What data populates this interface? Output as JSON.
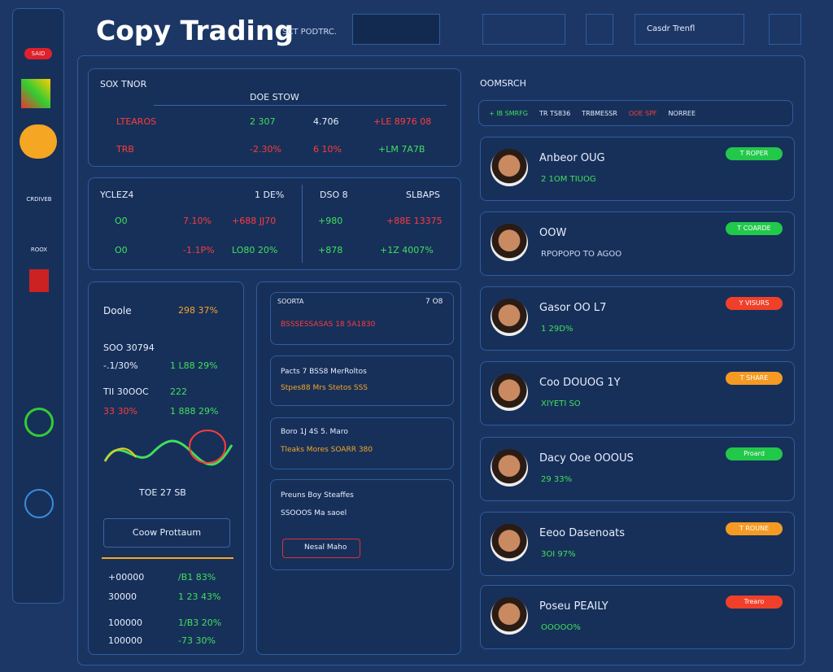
{
  "header": {
    "title": "Copy Trading",
    "subtitle": "SCT PODTRC.",
    "search": "Casdr Trenfl"
  },
  "sidebar": {
    "items": [
      "SAID",
      "CRDIVEB",
      "ROOX"
    ]
  },
  "market_table": {
    "title": "SOX TNOR",
    "column": "DOE STOW",
    "rows": [
      [
        "LTEAROS",
        "2 307",
        "4.706",
        "+LE 8976 08"
      ],
      [
        "TRB",
        "-2.30%",
        "6 10%",
        "+LM 7A7B"
      ]
    ]
  },
  "pair_table": {
    "left": {
      "title": "YCLEZ4",
      "column": "1 DE%",
      "rows": [
        [
          "O0",
          "7.10%",
          "+688 JJ70"
        ],
        [
          "O0",
          "-1.1P%",
          "LO80 20%"
        ]
      ]
    },
    "right": {
      "title": "DSO 8",
      "column": "SLBAPS",
      "rows": [
        [
          "+980",
          "+88E 13375"
        ],
        [
          "+878",
          "+1Z 4007%"
        ]
      ]
    }
  },
  "portfolio": {
    "title": "Doole",
    "total": "298 37%",
    "subtitle": "SOO 30794",
    "rows": [
      [
        "-.1/30%",
        "1 L88 29%"
      ],
      [
        "TII 30OOC",
        "222"
      ],
      [
        "33 30%",
        "1 888 29%"
      ]
    ],
    "chart_legend": "TOE 27 SB",
    "button": "Coow Prottaum",
    "bottom_rows": [
      [
        "+00000",
        "/B1 83%"
      ],
      [
        "30000",
        "1 23 43%"
      ],
      [
        "100000",
        "1/B3 20%"
      ],
      [
        "100000",
        "-73 30%"
      ]
    ]
  },
  "feed": {
    "cards": [
      {
        "title": "SOORTA",
        "tag": "7 O8",
        "text": "BSSSESSASAS  18 5A1830"
      },
      {
        "title": "Pacts 7 BSS8 MerRoltos",
        "text": "Stpes88 Mrs Stetos SSS"
      },
      {
        "title": "Boro 1J 4S 5. Maro",
        "text": "Tleaks Mores SOARR 380"
      },
      {
        "title": "Preuns Boy Steaffes",
        "text": "SSOOOS Ma saoel",
        "button": "Nesal Maho"
      }
    ]
  },
  "traders_panel": {
    "title": "OOMSRCH",
    "filters": [
      "+ IB SMRFG",
      "TR TS836",
      "TRBMESSR",
      "OOE SPF",
      "NORREE"
    ]
  },
  "traders": [
    {
      "name": "Anbeor OUG",
      "stat": "2 1OM TIUOG",
      "badge": "T ROPER"
    },
    {
      "name": "OOW",
      "stat": "RPOPOPO TO AGOO",
      "badge": "T COARDE"
    },
    {
      "name": "Gasor OO L7",
      "stat": "1 29D%",
      "badge": "Y VISURS"
    },
    {
      "name": "Coo DOUOG 1Y",
      "stat": "XIYETI SO",
      "badge": "T SHARE"
    },
    {
      "name": "Dacy Ooe OOOUS",
      "stat": "29 33%",
      "badge": "Proard"
    },
    {
      "name": "Eeoo Dasenoats",
      "stat": "3OI 97%",
      "badge": "T ROUNE"
    },
    {
      "name": "Poseu PEAILY",
      "stat": "OOOOO%",
      "badge": "Trearo"
    }
  ]
}
